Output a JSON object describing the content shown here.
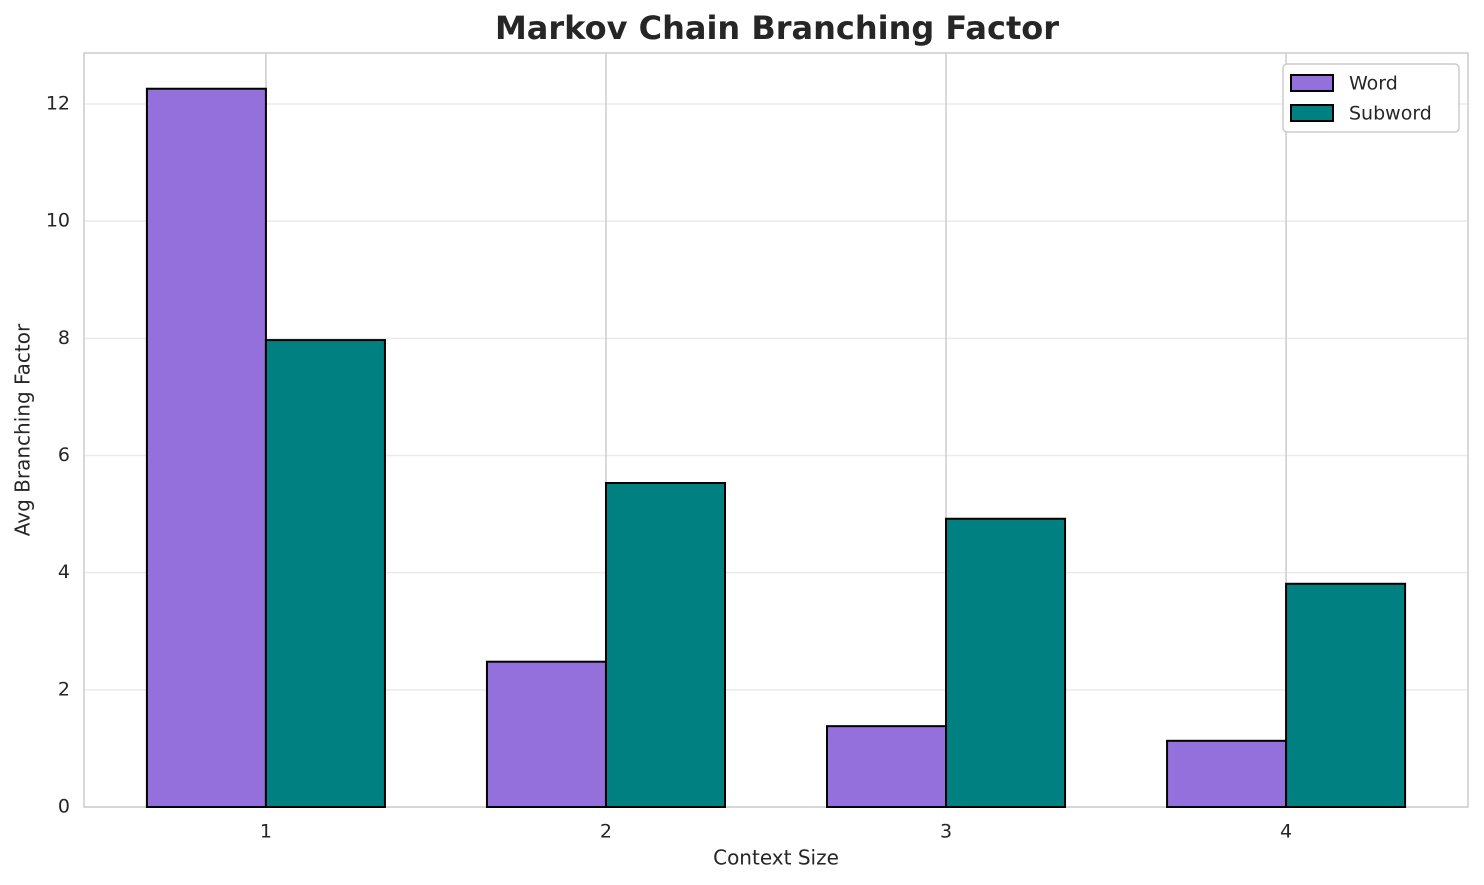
{
  "chart_data": {
    "type": "grouped_bar",
    "title": "Markov Chain Branching Factor",
    "x_label": "Context Size",
    "y_label": "Avg Branching Factor",
    "categories": [
      "1",
      "2",
      "3",
      "4"
    ],
    "series": [
      {
        "name": "Word",
        "color": "#9370db",
        "values": [
          12.26,
          2.48,
          1.38,
          1.13
        ]
      },
      {
        "name": "Subword",
        "color": "#008080",
        "values": [
          7.97,
          5.53,
          4.92,
          3.81
        ]
      }
    ],
    "ylim": [
      0,
      12.87
    ],
    "yticks": [
      0,
      2,
      4,
      6,
      8,
      10,
      12
    ],
    "grid": true,
    "legend": "upper right"
  }
}
